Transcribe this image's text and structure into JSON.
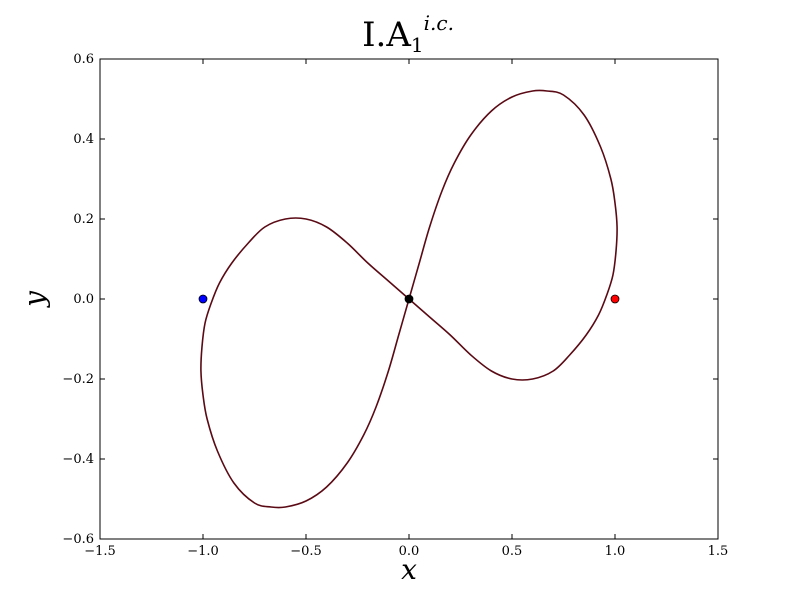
{
  "chart_data": {
    "type": "line",
    "title": {
      "main": "I.A",
      "subscript": "1",
      "superscript": "i.c."
    },
    "xlabel": "x",
    "ylabel": "y",
    "xlim": [
      -1.5,
      1.5
    ],
    "ylim": [
      -0.6,
      0.6
    ],
    "x_ticks": [
      -1.5,
      -1.0,
      -0.5,
      0.0,
      0.5,
      1.0,
      1.5
    ],
    "y_ticks": [
      -0.6,
      -0.4,
      -0.2,
      0.0,
      0.2,
      0.4,
      0.6
    ],
    "x_tick_labels": [
      "−1.5",
      "−1.0",
      "−0.5",
      "0.0",
      "0.5",
      "1.0",
      "1.5"
    ],
    "y_tick_labels": [
      "−0.6",
      "−0.4",
      "−0.2",
      "0.0",
      "0.2",
      "0.4",
      "0.6"
    ],
    "grid": false,
    "series": [
      {
        "color": "#5a0a14",
        "points": [
          [
            0.0,
            0.0
          ],
          [
            0.05,
            0.09
          ],
          [
            0.1,
            0.18
          ],
          [
            0.16,
            0.27
          ],
          [
            0.22,
            0.34
          ],
          [
            0.3,
            0.41
          ],
          [
            0.4,
            0.47
          ],
          [
            0.5,
            0.505
          ],
          [
            0.6,
            0.52
          ],
          [
            0.67,
            0.52
          ],
          [
            0.75,
            0.51
          ],
          [
            0.85,
            0.46
          ],
          [
            0.93,
            0.38
          ],
          [
            0.98,
            0.3
          ],
          [
            1.0,
            0.24
          ],
          [
            1.01,
            0.18
          ],
          [
            1.005,
            0.12
          ],
          [
            0.99,
            0.06
          ],
          [
            0.96,
            0.01
          ],
          [
            0.92,
            -0.04
          ],
          [
            0.86,
            -0.09
          ],
          [
            0.78,
            -0.14
          ],
          [
            0.7,
            -0.18
          ],
          [
            0.6,
            -0.2
          ],
          [
            0.5,
            -0.2
          ],
          [
            0.4,
            -0.18
          ],
          [
            0.3,
            -0.14
          ],
          [
            0.2,
            -0.09
          ],
          [
            0.1,
            -0.045
          ],
          [
            0.0,
            0.0
          ],
          [
            -0.1,
            0.045
          ],
          [
            -0.2,
            0.09
          ],
          [
            -0.3,
            0.14
          ],
          [
            -0.4,
            0.18
          ],
          [
            -0.5,
            0.2
          ],
          [
            -0.6,
            0.2
          ],
          [
            -0.7,
            0.18
          ],
          [
            -0.78,
            0.14
          ],
          [
            -0.86,
            0.09
          ],
          [
            -0.92,
            0.04
          ],
          [
            -0.96,
            -0.01
          ],
          [
            -0.99,
            -0.06
          ],
          [
            -1.005,
            -0.12
          ],
          [
            -1.01,
            -0.18
          ],
          [
            -1.0,
            -0.24
          ],
          [
            -0.98,
            -0.3
          ],
          [
            -0.93,
            -0.38
          ],
          [
            -0.85,
            -0.46
          ],
          [
            -0.75,
            -0.51
          ],
          [
            -0.67,
            -0.52
          ],
          [
            -0.6,
            -0.52
          ],
          [
            -0.5,
            -0.505
          ],
          [
            -0.4,
            -0.47
          ],
          [
            -0.3,
            -0.41
          ],
          [
            -0.22,
            -0.34
          ],
          [
            -0.16,
            -0.27
          ],
          [
            -0.1,
            -0.18
          ],
          [
            -0.05,
            -0.09
          ],
          [
            0.0,
            0.0
          ]
        ]
      }
    ],
    "markers": [
      {
        "x": -1.0,
        "y": 0.0,
        "color": "#0000ff"
      },
      {
        "x": 0.0,
        "y": 0.0,
        "color": "#000000"
      },
      {
        "x": 1.0,
        "y": 0.0,
        "color": "#ff0000"
      }
    ]
  }
}
